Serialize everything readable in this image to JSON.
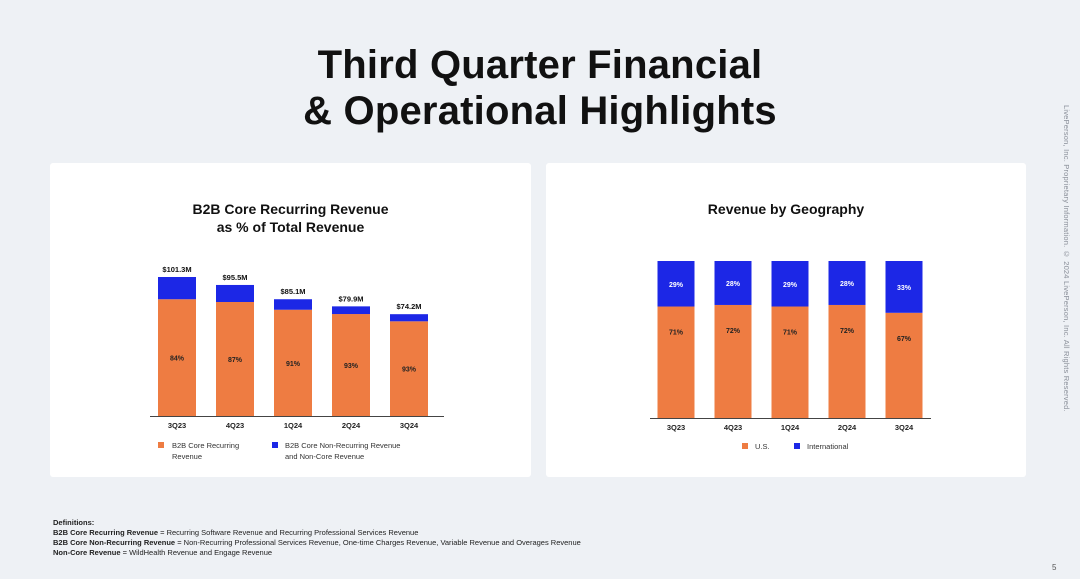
{
  "title": {
    "line1": "Third Quarter Financial",
    "line2": "& Operational Highlights"
  },
  "colors": {
    "orange": "#ee7c42",
    "blue": "#1c27e6",
    "background": "#eef1f5"
  },
  "chart_data": [
    {
      "type": "bar",
      "stacked": true,
      "title_line1": "B2B Core Recurring Revenue",
      "title_line2": "as % of Total Revenue",
      "categories": [
        "3Q23",
        "4Q23",
        "1Q24",
        "2Q24",
        "3Q24"
      ],
      "totals": [
        101.3,
        95.5,
        85.1,
        79.9,
        74.2
      ],
      "total_labels": [
        "$101.3M",
        "$95.5M",
        "$85.1M",
        "$79.9M",
        "$74.2M"
      ],
      "series": [
        {
          "name": "B2B Core Recurring Revenue",
          "color": "#ee7c42",
          "percents": [
            84,
            87,
            91,
            93,
            93
          ],
          "labels": [
            "84%",
            "87%",
            "91%",
            "93%",
            "93%"
          ]
        },
        {
          "name": "B2B Core Non-Recurring Revenue and Non-Core Revenue",
          "color": "#1c27e6",
          "percents": [
            16,
            13,
            9,
            7,
            7
          ]
        }
      ],
      "legend": [
        {
          "line1": "B2B Core Recurring",
          "line2": "Revenue"
        },
        {
          "line1": "B2B Core Non-Recurring Revenue",
          "line2": "and Non-Core Revenue"
        }
      ],
      "ylim": [
        0,
        101.3
      ]
    },
    {
      "type": "bar",
      "stacked": true,
      "title": "Revenue by Geography",
      "categories": [
        "3Q23",
        "4Q23",
        "1Q24",
        "2Q24",
        "3Q24"
      ],
      "series": [
        {
          "name": "U.S.",
          "color": "#ee7c42",
          "values": [
            71,
            72,
            71,
            72,
            67
          ],
          "labels": [
            "71%",
            "72%",
            "71%",
            "72%",
            "67%"
          ]
        },
        {
          "name": "International",
          "color": "#1c27e6",
          "values": [
            29,
            28,
            29,
            28,
            33
          ],
          "labels": [
            "29%",
            "28%",
            "29%",
            "28%",
            "33%"
          ]
        }
      ],
      "legend": [
        "U.S.",
        "International"
      ],
      "ylim": [
        0,
        100
      ]
    }
  ],
  "definitions": {
    "heading": "Definitions:",
    "items": [
      {
        "term": "B2B Core Recurring Revenue",
        "text": " = Recurring Software Revenue and Recurring Professional Services Revenue"
      },
      {
        "term": "B2B Core Non-Recurring Revenue",
        "text": " = Non-Recurring Professional Services Revenue, One-time Charges Revenue, Variable Revenue and Overages Revenue"
      },
      {
        "term": "Non-Core Revenue",
        "text": " = WildHealth Revenue and Engage Revenue"
      }
    ]
  },
  "side_note": "LivePerson, Inc. Proprietary Information. © 2024 LivePerson, Inc. All Rights Reserved.",
  "page_number": "5"
}
